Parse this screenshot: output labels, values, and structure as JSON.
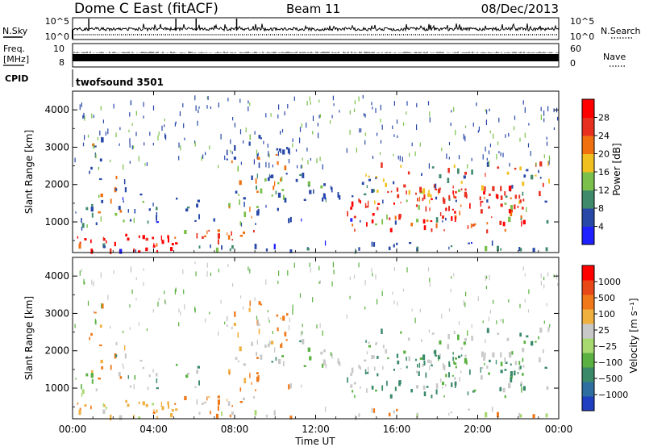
{
  "header": {
    "title": "Dome C East (fitACF)",
    "beam": "Beam 11",
    "date": "08/Dec/2013"
  },
  "noise_panel": {
    "left_label": "N.Sky",
    "left_ticks": [
      "10^5",
      "10^0"
    ],
    "right_ticks": [
      "10^5",
      "10^0"
    ],
    "right_label": "N.Search"
  },
  "freq_panel": {
    "left_label_1": "Freq.",
    "left_label_2": "[MHz]",
    "left_ticks": [
      "10",
      "8"
    ],
    "right_ticks": [
      "60",
      "0"
    ],
    "right_label": "Nave"
  },
  "cpid_panel": {
    "label": "CPID",
    "value": "twofsound 3501"
  },
  "chart_data": [
    {
      "type": "heatmap",
      "title": "",
      "parameter": "Power",
      "ylabel": "Slant Range [km]",
      "xlabel": "",
      "x_ticks": [
        "00:00",
        "04:00",
        "08:00",
        "12:00",
        "16:00",
        "20:00",
        "00:00"
      ],
      "y_ticks": [
        1000,
        2000,
        3000,
        4000
      ],
      "ylim": [
        180,
        4500
      ],
      "xlim_hours": [
        0,
        24
      ],
      "colorbar": {
        "label": "Power [dB]",
        "ticks": [
          "4",
          "8",
          "12",
          "16",
          "20",
          "24",
          "28"
        ],
        "colors": [
          "#1f20ff",
          "#2848a8",
          "#3f8a6a",
          "#7ac04a",
          "#f0c020",
          "#f07010",
          "#e83020",
          "#ff0000"
        ]
      }
    },
    {
      "type": "heatmap",
      "title": "",
      "parameter": "Velocity",
      "ylabel": "Slant Range [km]",
      "xlabel": "Time UT",
      "x_ticks": [
        "00:00",
        "04:00",
        "08:00",
        "12:00",
        "16:00",
        "20:00",
        "00:00"
      ],
      "y_ticks": [
        1000,
        2000,
        3000,
        4000
      ],
      "ylim": [
        180,
        4500
      ],
      "xlim_hours": [
        0,
        24
      ],
      "colorbar": {
        "label": "Velocity [m s⁻¹]",
        "ticks": [
          "1000",
          "500",
          "100",
          "25",
          "−25",
          "−100",
          "−500",
          "−1000"
        ],
        "colors": [
          "#1f40c0",
          "#2f6ea0",
          "#3a8a6a",
          "#5ab040",
          "#a8d870",
          "#c8c8c8",
          "#f0b040",
          "#f07818",
          "#e84818",
          "#ff0000"
        ]
      }
    }
  ]
}
